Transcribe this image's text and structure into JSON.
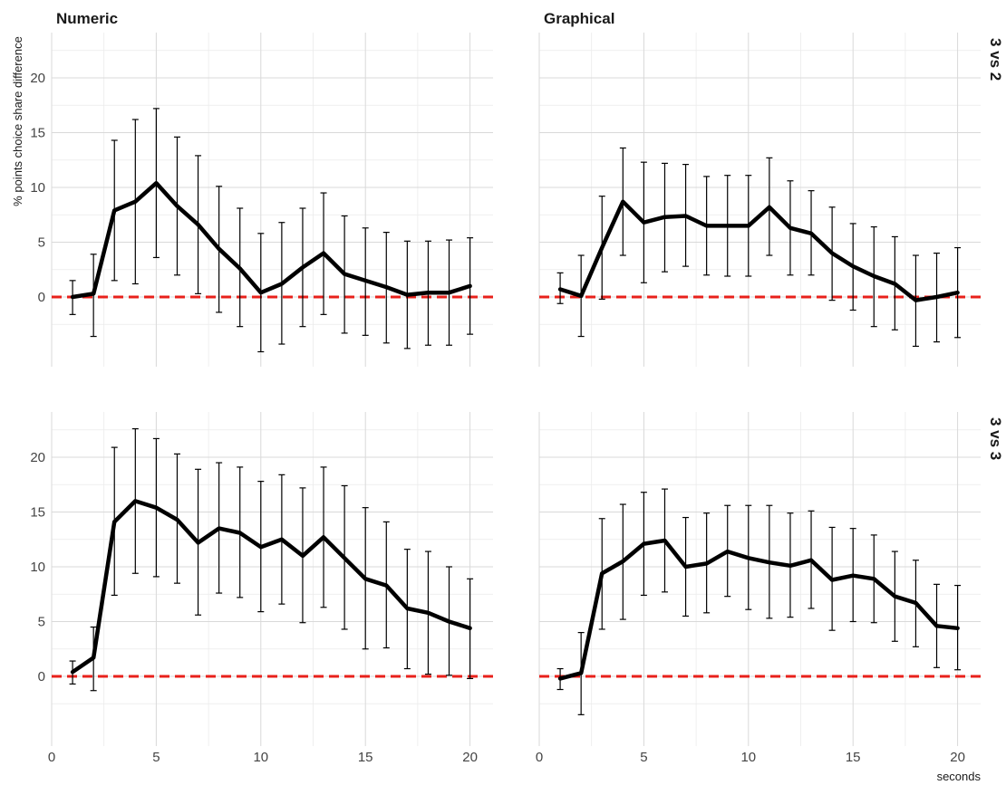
{
  "chart_data": {
    "type": "line",
    "ylabel": "% points choice share difference",
    "xlabel": "seconds",
    "xlim": [
      0,
      21
    ],
    "ylim": [
      -6.5,
      24
    ],
    "x_ticks": [
      0,
      5,
      10,
      15,
      20
    ],
    "y_ticks": [
      0,
      5,
      10,
      15,
      20
    ],
    "reference_line": {
      "y": 0,
      "color": "#e8211b",
      "style": "dashed"
    },
    "line_color": "#000000",
    "column_facets": [
      "Numeric",
      "Graphical"
    ],
    "row_facets": [
      "3 vs 2",
      "3 vs 3"
    ],
    "panels": [
      {
        "column": "Numeric",
        "row": "3 vs 2",
        "x": [
          1,
          2,
          3,
          4,
          5,
          6,
          7,
          8,
          9,
          10,
          11,
          12,
          13,
          14,
          15,
          16,
          17,
          18,
          19,
          20
        ],
        "y": [
          0.0,
          0.3,
          7.9,
          8.7,
          10.4,
          8.3,
          6.6,
          4.4,
          2.6,
          0.4,
          1.2,
          2.7,
          4.0,
          2.1,
          1.5,
          0.9,
          0.2,
          0.4,
          0.4,
          1.0
        ],
        "lower": [
          -1.6,
          -3.6,
          1.5,
          1.2,
          3.6,
          2.0,
          0.3,
          -1.4,
          -2.7,
          -5.0,
          -4.3,
          -2.7,
          -1.6,
          -3.3,
          -3.5,
          -4.2,
          -4.7,
          -4.4,
          -4.4,
          -3.4
        ],
        "upper": [
          1.5,
          3.9,
          14.3,
          16.2,
          17.2,
          14.6,
          12.9,
          10.1,
          8.1,
          5.8,
          6.8,
          8.1,
          9.5,
          7.4,
          6.3,
          5.9,
          5.1,
          5.1,
          5.2,
          5.4
        ]
      },
      {
        "column": "Graphical",
        "row": "3 vs 2",
        "x": [
          1,
          2,
          3,
          4,
          5,
          6,
          7,
          8,
          9,
          10,
          11,
          12,
          13,
          14,
          15,
          16,
          17,
          18,
          19,
          20
        ],
        "y": [
          0.7,
          0.1,
          4.5,
          8.7,
          6.8,
          7.3,
          7.4,
          6.5,
          6.5,
          6.5,
          8.2,
          6.3,
          5.8,
          4.0,
          2.8,
          1.9,
          1.2,
          -0.3,
          0.0,
          0.4
        ],
        "lower": [
          -0.6,
          -3.6,
          -0.2,
          3.8,
          1.3,
          2.3,
          2.8,
          2.0,
          1.9,
          1.9,
          3.8,
          2.0,
          2.0,
          -0.3,
          -1.2,
          -2.7,
          -3.0,
          -4.5,
          -4.1,
          -3.7
        ],
        "upper": [
          2.2,
          3.8,
          9.2,
          13.6,
          12.3,
          12.2,
          12.1,
          11.0,
          11.1,
          11.1,
          12.7,
          10.6,
          9.7,
          8.2,
          6.7,
          6.4,
          5.5,
          3.8,
          4.0,
          4.5
        ]
      },
      {
        "column": "Numeric",
        "row": "3 vs 3",
        "x": [
          1,
          2,
          3,
          4,
          5,
          6,
          7,
          8,
          9,
          10,
          11,
          12,
          13,
          14,
          15,
          16,
          17,
          18,
          19,
          20
        ],
        "y": [
          0.4,
          1.7,
          14.1,
          16.0,
          15.4,
          14.3,
          12.2,
          13.5,
          13.1,
          11.8,
          12.5,
          11.0,
          12.7,
          10.8,
          8.9,
          8.3,
          6.2,
          5.8,
          5.0,
          4.4
        ],
        "lower": [
          -0.7,
          -1.3,
          7.4,
          9.4,
          9.1,
          8.5,
          5.6,
          7.6,
          7.2,
          5.9,
          6.6,
          4.9,
          6.3,
          4.3,
          2.5,
          2.6,
          0.7,
          0.2,
          0.1,
          -0.2
        ],
        "upper": [
          1.4,
          4.5,
          20.9,
          22.6,
          21.7,
          20.3,
          18.9,
          19.5,
          19.1,
          17.8,
          18.4,
          17.2,
          19.1,
          17.4,
          15.4,
          14.1,
          11.6,
          11.4,
          10.0,
          8.9
        ]
      },
      {
        "column": "Graphical",
        "row": "3 vs 3",
        "x": [
          1,
          2,
          3,
          4,
          5,
          6,
          7,
          8,
          9,
          10,
          11,
          12,
          13,
          14,
          15,
          16,
          17,
          18,
          19,
          20
        ],
        "y": [
          -0.2,
          0.3,
          9.4,
          10.5,
          12.1,
          12.4,
          10.0,
          10.3,
          11.4,
          10.8,
          10.4,
          10.1,
          10.6,
          8.8,
          9.2,
          8.9,
          7.3,
          6.7,
          4.6,
          4.4
        ],
        "lower": [
          -1.2,
          -3.5,
          4.3,
          5.2,
          7.4,
          7.7,
          5.5,
          5.8,
          7.3,
          6.1,
          5.3,
          5.4,
          6.2,
          4.2,
          5.0,
          4.9,
          3.2,
          2.7,
          0.8,
          0.6
        ],
        "upper": [
          0.7,
          4.0,
          14.4,
          15.7,
          16.8,
          17.1,
          14.5,
          14.9,
          15.6,
          15.6,
          15.6,
          14.9,
          15.1,
          13.6,
          13.5,
          12.9,
          11.4,
          10.6,
          8.4,
          8.3
        ]
      }
    ]
  }
}
